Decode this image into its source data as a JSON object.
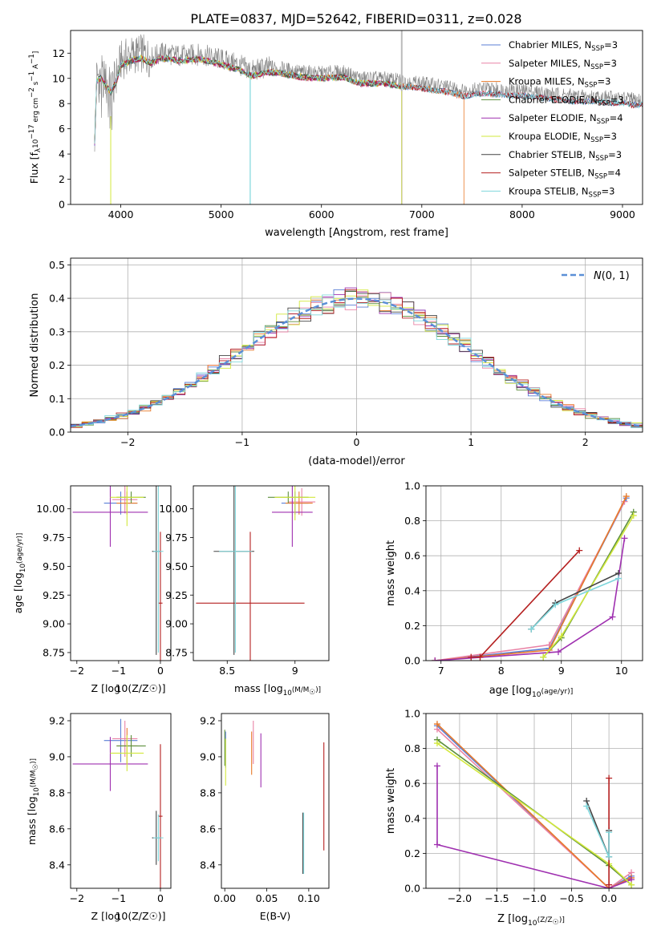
{
  "figure": {
    "title": "PLATE=0837, MJD=52642, FIBERID=0311, z=0.028"
  },
  "chart_data": [
    {
      "id": "spectrum",
      "type": "line",
      "xlabel": "wavelength [Angstrom, rest frame]",
      "ylabel": "Flux [f_λ 10^-17 erg cm^-2 s^-1 A^-1]",
      "xlim": [
        3500,
        9200
      ],
      "ylim": [
        0,
        13.8
      ],
      "xticks": [
        4000,
        5000,
        6000,
        7000,
        8000,
        9000
      ],
      "yticks": [
        0,
        2,
        4,
        6,
        8,
        10,
        12
      ],
      "legend_position": "top-right",
      "observed_color": "#808080",
      "continuum": [
        [
          3740,
          5.2
        ],
        [
          3760,
          10.2
        ],
        [
          3800,
          10.4
        ],
        [
          3900,
          9.3
        ],
        [
          3950,
          10.0
        ],
        [
          4000,
          11.4
        ],
        [
          4100,
          11.8
        ],
        [
          4200,
          12.0
        ],
        [
          4300,
          11.6
        ],
        [
          4400,
          12.0
        ],
        [
          4600,
          11.8
        ],
        [
          4800,
          11.9
        ],
        [
          5000,
          11.5
        ],
        [
          5200,
          11.0
        ],
        [
          5300,
          10.6
        ],
        [
          5500,
          10.9
        ],
        [
          5800,
          10.5
        ],
        [
          6000,
          10.4
        ],
        [
          6200,
          10.5
        ],
        [
          6400,
          10.0
        ],
        [
          6600,
          10.0
        ],
        [
          6800,
          9.8
        ],
        [
          7000,
          9.6
        ],
        [
          7200,
          9.4
        ],
        [
          7420,
          9.0
        ],
        [
          7600,
          9.2
        ],
        [
          8000,
          9.0
        ],
        [
          8500,
          8.6
        ],
        [
          8800,
          8.5
        ],
        [
          9000,
          8.4
        ],
        [
          9100,
          8.3
        ]
      ],
      "series": [
        {
          "name": "Chabrier MILES, N_SSP=3",
          "label_main": "Chabrier MILES, N",
          "label_sub": "SSP",
          "label_end": "=3",
          "color": "#5b7fd6",
          "end": 9200
        },
        {
          "name": "Salpeter MILES, N_SSP=3",
          "label_main": "Salpeter MILES, N",
          "label_sub": "SSP",
          "label_end": "=3",
          "color": "#e982a5",
          "end": 9200
        },
        {
          "name": "Kroupa MILES, N_SSP=3",
          "label_main": "Kroupa MILES, N",
          "label_sub": "SSP",
          "label_end": "=3",
          "color": "#e87a2a",
          "end": 7420
        },
        {
          "name": "Chabrier ELODIE, N_SSP=3",
          "label_main": "Chabrier ELODIE, N",
          "label_sub": "SSP",
          "label_end": "=3",
          "color": "#5d8f3c",
          "end": 6800
        },
        {
          "name": "Salpeter ELODIE, N_SSP=4",
          "label_main": "Salpeter ELODIE, N",
          "label_sub": "SSP",
          "label_end": "=4",
          "color": "#9f30b0",
          "end": 6800
        },
        {
          "name": "Kroupa ELODIE, N_SSP=3",
          "label_main": "Kroupa ELODIE, N",
          "label_sub": "SSP",
          "label_end": "=3",
          "color": "#d2e83c",
          "end": 6800
        },
        {
          "name": "Chabrier STELIB, N_SSP=3",
          "label_main": "Chabrier STELIB, N",
          "label_sub": "SSP",
          "label_end": "=3",
          "color": "#444444",
          "end": 9200
        },
        {
          "name": "Salpeter STELIB, N_SSP=4",
          "label_main": "Salpeter STELIB, N",
          "label_sub": "SSP",
          "label_end": "=4",
          "color": "#b52020",
          "end": 9200
        },
        {
          "name": "Kroupa STELIB, N_SSP=3",
          "label_main": "Kroupa STELIB, N",
          "label_sub": "SSP",
          "label_end": "=3",
          "color": "#7fd7dc",
          "end": 9200
        }
      ]
    },
    {
      "id": "residuals",
      "type": "line",
      "xlabel": "(data-model)/error",
      "ylabel": "Normed distribution",
      "xlim": [
        -2.5,
        2.5
      ],
      "ylim": [
        0,
        0.52
      ],
      "xticks": [
        -2,
        -1,
        0,
        1,
        2
      ],
      "yticks": [
        0.0,
        0.1,
        0.2,
        0.3,
        0.4,
        0.5
      ],
      "grid": true,
      "legend_position": "top-right",
      "reference": {
        "name": "N(0,1)",
        "color": "#5b8fd6",
        "mu": 0,
        "sigma": 1
      },
      "bin_width": 0.1
    },
    {
      "id": "age_vs_Z",
      "type": "scatter",
      "xlabel": "Z [log10(Z/Z☉)]",
      "ylabel": "age [log10(age/yr)]",
      "xlim": [
        -2.15,
        0.25
      ],
      "ylim": [
        8.68,
        10.2
      ],
      "xticks": [
        -2,
        -1,
        0
      ],
      "yticks": [
        8.75,
        9.0,
        9.25,
        9.5,
        9.75,
        10.0
      ]
    },
    {
      "id": "age_vs_mass",
      "type": "scatter",
      "xlabel": "mass [log10(M/M☉)]",
      "ylabel": "",
      "xlim": [
        8.25,
        9.25
      ],
      "ylim": [
        8.68,
        10.2
      ],
      "xticks": [
        8.5,
        9.0
      ],
      "yticks": [
        8.75,
        9.0,
        9.25,
        9.5,
        9.75,
        10.0
      ]
    },
    {
      "id": "weight_vs_age",
      "type": "line",
      "xlabel": "age [log10(age/yr)]",
      "ylabel": "mass weight",
      "xlim": [
        6.75,
        10.35
      ],
      "ylim": [
        0,
        1.0
      ],
      "xticks": [
        7,
        8,
        9,
        10
      ],
      "yticks": [
        0.0,
        0.2,
        0.4,
        0.6,
        0.8,
        1.0
      ],
      "grid": true,
      "series": [
        {
          "name": "Chabrier MILES",
          "color": "#5b7fd6",
          "points": [
            [
              6.9,
              0.0
            ],
            [
              8.8,
              0.07
            ],
            [
              10.08,
              0.93
            ]
          ]
        },
        {
          "name": "Salpeter MILES",
          "color": "#e982a5",
          "points": [
            [
              6.9,
              0.0
            ],
            [
              8.8,
              0.09
            ],
            [
              10.05,
              0.91
            ]
          ]
        },
        {
          "name": "Kroupa MILES",
          "color": "#e87a2a",
          "points": [
            [
              6.9,
              0.0
            ],
            [
              8.8,
              0.06
            ],
            [
              10.08,
              0.94
            ]
          ]
        },
        {
          "name": "Chabrier ELODIE",
          "color": "#5d8f3c",
          "points": [
            [
              8.7,
              0.02
            ],
            [
              9.0,
              0.13
            ],
            [
              10.2,
              0.85
            ]
          ]
        },
        {
          "name": "Salpeter ELODIE",
          "color": "#9f30b0",
          "points": [
            [
              6.9,
              0.0
            ],
            [
              8.95,
              0.05
            ],
            [
              9.85,
              0.25
            ],
            [
              10.05,
              0.7
            ]
          ]
        },
        {
          "name": "Kroupa ELODIE",
          "color": "#d2e83c",
          "points": [
            [
              8.7,
              0.02
            ],
            [
              9.0,
              0.14
            ],
            [
              10.2,
              0.83
            ]
          ]
        },
        {
          "name": "Chabrier STELIB",
          "color": "#444444",
          "points": [
            [
              8.5,
              0.18
            ],
            [
              8.9,
              0.33
            ],
            [
              9.95,
              0.5
            ]
          ]
        },
        {
          "name": "Salpeter STELIB",
          "color": "#b52020",
          "points": [
            [
              7.5,
              0.02
            ],
            [
              7.65,
              0.02
            ],
            [
              9.3,
              0.63
            ]
          ]
        },
        {
          "name": "Kroupa STELIB",
          "color": "#7fd7dc",
          "points": [
            [
              8.5,
              0.18
            ],
            [
              8.9,
              0.32
            ],
            [
              9.95,
              0.47
            ]
          ]
        }
      ]
    },
    {
      "id": "mass_vs_Z",
      "type": "scatter",
      "xlabel": "Z [log10(Z/Z☉)]",
      "ylabel": "mass [log10(M/M☉)]",
      "xlim": [
        -2.15,
        0.25
      ],
      "ylim": [
        8.27,
        9.24
      ],
      "xticks": [
        -2,
        -1,
        0
      ],
      "yticks": [
        8.4,
        8.6,
        8.8,
        9.0,
        9.2
      ]
    },
    {
      "id": "mass_vs_ebv",
      "type": "scatter",
      "xlabel": "E(B-V)",
      "ylabel": "",
      "xlim": [
        -0.004,
        0.124
      ],
      "ylim": [
        8.27,
        9.24
      ],
      "xticks": [
        0.0,
        0.05,
        0.1
      ],
      "yticks": [
        8.4,
        8.6,
        8.8,
        9.0,
        9.2
      ]
    },
    {
      "id": "weight_vs_Z",
      "type": "line",
      "xlabel": "Z [log10(Z/Z☉)]",
      "ylabel": "mass weight",
      "xlim": [
        -2.45,
        0.45
      ],
      "ylim": [
        0,
        1.0
      ],
      "xticks": [
        -2.0,
        -1.5,
        -1.0,
        -0.5,
        0.0
      ],
      "yticks": [
        0.0,
        0.2,
        0.4,
        0.6,
        0.8,
        1.0
      ],
      "grid": true,
      "series": [
        {
          "name": "Chabrier MILES",
          "color": "#5b7fd6",
          "points": [
            [
              -2.3,
              0.93
            ],
            [
              0.0,
              0.0
            ],
            [
              0.3,
              0.07
            ]
          ]
        },
        {
          "name": "Salpeter MILES",
          "color": "#e982a5",
          "points": [
            [
              -2.3,
              0.91
            ],
            [
              0.0,
              0.0
            ],
            [
              0.3,
              0.09
            ]
          ]
        },
        {
          "name": "Kroupa MILES",
          "color": "#e87a2a",
          "points": [
            [
              -2.3,
              0.94
            ],
            [
              0.0,
              0.0
            ],
            [
              0.3,
              0.06
            ]
          ]
        },
        {
          "name": "Chabrier ELODIE",
          "color": "#5d8f3c",
          "points": [
            [
              -2.3,
              0.85
            ],
            [
              0.0,
              0.13
            ],
            [
              0.3,
              0.02
            ]
          ]
        },
        {
          "name": "Salpeter ELODIE",
          "color": "#9f30b0",
          "points": [
            [
              -2.3,
              0.7
            ],
            [
              -2.3,
              0.25
            ],
            [
              0.0,
              0.0
            ],
            [
              0.3,
              0.05
            ]
          ]
        },
        {
          "name": "Kroupa ELODIE",
          "color": "#d2e83c",
          "points": [
            [
              -2.3,
              0.83
            ],
            [
              0.0,
              0.14
            ],
            [
              0.3,
              0.02
            ]
          ]
        },
        {
          "name": "Chabrier STELIB",
          "color": "#444444",
          "points": [
            [
              -0.3,
              0.5
            ],
            [
              0.0,
              0.18
            ],
            [
              0.0,
              0.33
            ]
          ]
        },
        {
          "name": "Salpeter STELIB",
          "color": "#b52020",
          "points": [
            [
              0.0,
              0.63
            ],
            [
              0.0,
              0.02
            ]
          ]
        },
        {
          "name": "Kroupa STELIB",
          "color": "#7fd7dc",
          "points": [
            [
              -0.3,
              0.47
            ],
            [
              0.0,
              0.18
            ],
            [
              0.0,
              0.32
            ]
          ]
        }
      ]
    }
  ]
}
